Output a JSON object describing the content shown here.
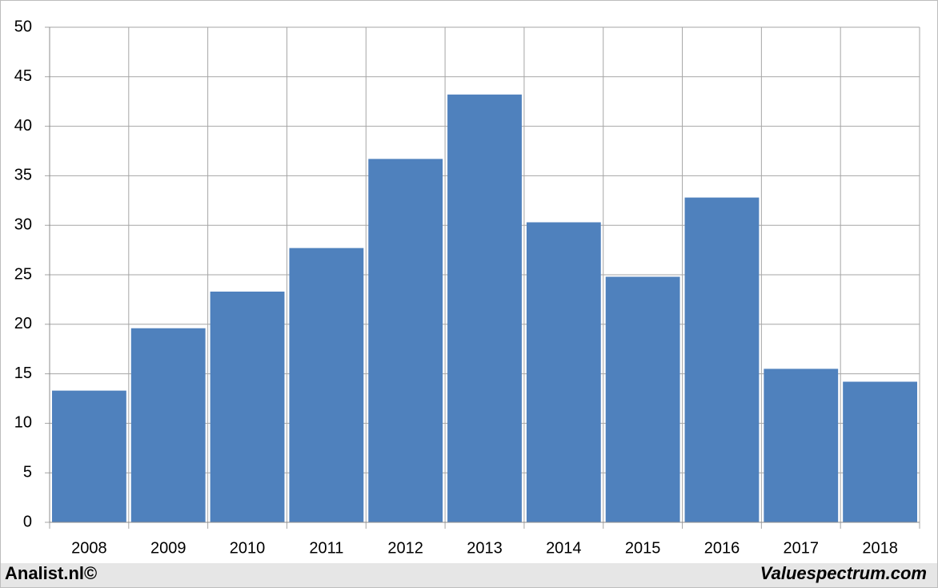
{
  "chart_data": {
    "type": "bar",
    "categories": [
      "2008",
      "2009",
      "2010",
      "2011",
      "2012",
      "2013",
      "2014",
      "2015",
      "2016",
      "2017",
      "2018"
    ],
    "values": [
      13.3,
      19.6,
      23.3,
      27.7,
      36.7,
      43.2,
      30.3,
      24.8,
      32.8,
      15.5,
      14.2
    ],
    "color": "#4f81bd",
    "ylim": [
      0,
      50
    ],
    "yticks": [
      0,
      5,
      10,
      15,
      20,
      25,
      30,
      35,
      40,
      45,
      50
    ],
    "grid": true,
    "footer_left": "Analist.nl©",
    "footer_right": "Valuespectrum.com"
  }
}
